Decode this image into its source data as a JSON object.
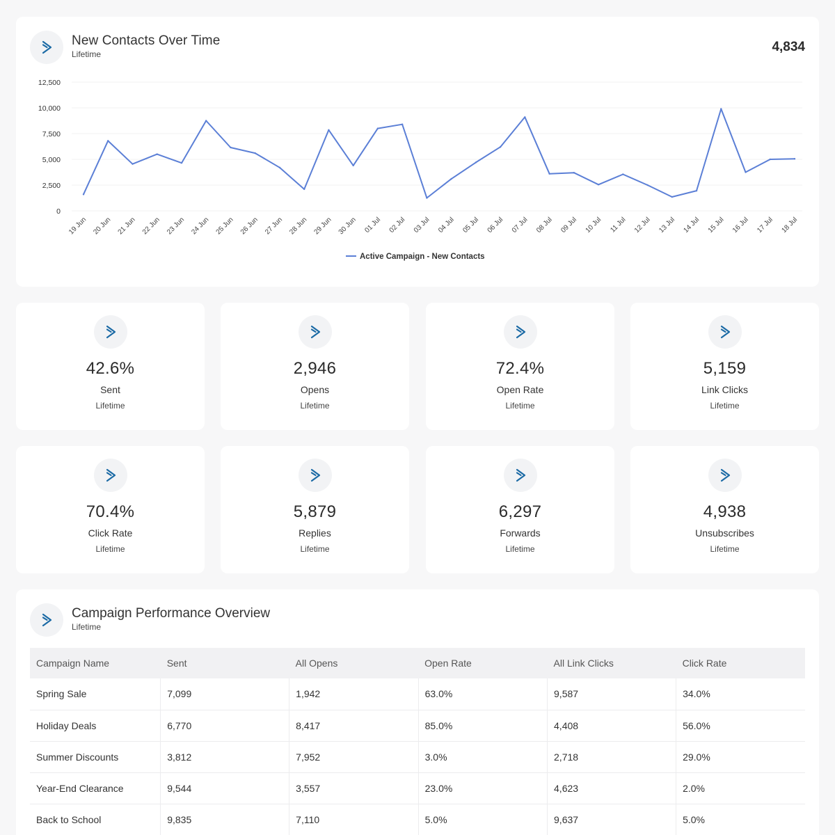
{
  "colors": {
    "accent": "#1b6aa5",
    "line": "#5b7fd6",
    "card": "#ffffff",
    "page": "#f7f7f8"
  },
  "chart_card": {
    "icon": "activecampaign-logo-icon",
    "title": "New Contacts Over Time",
    "subtitle": "Lifetime",
    "total": "4,834"
  },
  "chart_data": {
    "type": "line",
    "ylim": [
      0,
      12500
    ],
    "y_ticks": [
      0,
      2500,
      5000,
      7500,
      10000,
      12500
    ],
    "y_tick_labels": [
      "0",
      "2,500",
      "5,000",
      "7,500",
      "10,000",
      "12,500"
    ],
    "grid": true,
    "legend_position": "bottom-center",
    "x": [
      "19 Jun",
      "20 Jun",
      "21 Jun",
      "22 Jun",
      "23 Jun",
      "24 Jun",
      "25 Jun",
      "26 Jun",
      "27 Jun",
      "28 Jun",
      "29 Jun",
      "30 Jun",
      "01 Jul",
      "02 Jul",
      "03 Jul",
      "04 Jul",
      "05 Jul",
      "06 Jul",
      "07 Jul",
      "08 Jul",
      "09 Jul",
      "10 Jul",
      "11 Jul",
      "12 Jul",
      "13 Jul",
      "14 Jul",
      "15 Jul",
      "16 Jul",
      "17 Jul",
      "18 Jul"
    ],
    "series": [
      {
        "name": "Active Campaign - New Contacts",
        "values": [
          1600,
          6800,
          4550,
          5500,
          4650,
          8750,
          6150,
          5600,
          4200,
          2100,
          7850,
          4400,
          8000,
          8400,
          1250,
          3100,
          4700,
          6200,
          9100,
          3600,
          3700,
          2550,
          3550,
          2500,
          1350,
          1950,
          9900,
          3750,
          5000,
          5050
        ]
      }
    ]
  },
  "kpis": [
    {
      "value": "42.6%",
      "label": "Sent",
      "sub": "Lifetime"
    },
    {
      "value": "2,946",
      "label": "Opens",
      "sub": "Lifetime"
    },
    {
      "value": "72.4%",
      "label": "Open Rate",
      "sub": "Lifetime"
    },
    {
      "value": "5,159",
      "label": "Link Clicks",
      "sub": "Lifetime"
    },
    {
      "value": "70.4%",
      "label": "Click Rate",
      "sub": "Lifetime"
    },
    {
      "value": "5,879",
      "label": "Replies",
      "sub": "Lifetime"
    },
    {
      "value": "6,297",
      "label": "Forwards",
      "sub": "Lifetime"
    },
    {
      "value": "4,938",
      "label": "Unsubscribes",
      "sub": "Lifetime"
    }
  ],
  "table_card": {
    "title": "Campaign Performance Overview",
    "subtitle": "Lifetime",
    "columns": [
      "Campaign Name",
      "Sent",
      "All Opens",
      "Open Rate",
      "All Link Clicks",
      "Click Rate"
    ],
    "rows": [
      [
        "Spring Sale",
        "7,099",
        "1,942",
        "63.0%",
        "9,587",
        "34.0%"
      ],
      [
        "Holiday Deals",
        "6,770",
        "8,417",
        "85.0%",
        "4,408",
        "56.0%"
      ],
      [
        "Summer Discounts",
        "3,812",
        "7,952",
        "3.0%",
        "2,718",
        "29.0%"
      ],
      [
        "Year-End Clearance",
        "9,544",
        "3,557",
        "23.0%",
        "4,623",
        "2.0%"
      ],
      [
        "Back to School",
        "9,835",
        "7,110",
        "5.0%",
        "9,637",
        "5.0%"
      ]
    ]
  }
}
